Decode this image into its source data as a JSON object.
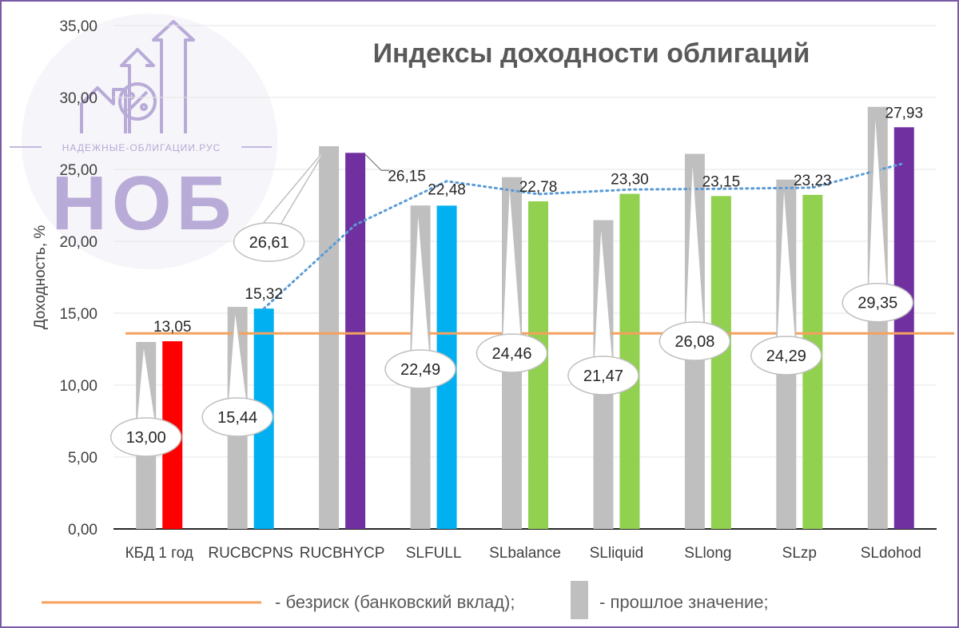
{
  "chart_data": {
    "type": "bar",
    "title": "Индексы доходности облигаций",
    "ylabel": "Доходность, %",
    "xlabel": "",
    "ylim": [
      0,
      35
    ],
    "yticks": [
      "0,00",
      "5,00",
      "10,00",
      "15,00",
      "20,00",
      "25,00",
      "30,00",
      "35,00"
    ],
    "grid": true,
    "categories": [
      "КБД 1 год",
      "RUCBCPNS",
      "RUCBHYCP",
      "SLFULL",
      "SLbalance",
      "SLliquid",
      "SLlong",
      "SLzp",
      "SLdohod"
    ],
    "series": [
      {
        "name": "прошлое значение",
        "color": "#bfbfbf",
        "values": [
          13.0,
          15.44,
          26.61,
          22.49,
          24.46,
          21.47,
          26.08,
          24.29,
          29.35
        ],
        "labels": [
          "13,00",
          "15,44",
          "26,61",
          "22,49",
          "24,46",
          "21,47",
          "26,08",
          "24,29",
          "29,35"
        ]
      },
      {
        "name": "",
        "values": [
          13.05,
          15.32,
          26.15,
          22.48,
          22.78,
          23.3,
          23.15,
          23.23,
          27.93
        ],
        "labels": [
          "13,05",
          "15,32",
          "26,15",
          "22,48",
          "22,78",
          "23,30",
          "23,15",
          "23,23",
          "27,93"
        ],
        "colors": [
          "#ff0000",
          "#00b0f0",
          "#7030a0",
          "#00b0f0",
          "#92d050",
          "#92d050",
          "#92d050",
          "#92d050",
          "#7030a0"
        ]
      }
    ],
    "riskfree": {
      "value": 13.6,
      "color": "#f4a15d"
    },
    "trendline": {
      "style": "dotted",
      "color": "#5b9bd5"
    },
    "legend": {
      "position": "bottom",
      "items": [
        {
          "label": "- безриск (банковский вклад);",
          "symbol": "line",
          "color": "#f4a15d"
        },
        {
          "label": "- прошлое значение;",
          "symbol": "bar",
          "color": "#bfbfbf"
        }
      ]
    }
  },
  "watermark": {
    "site": "НАДЕЖНЫЕ-ОБЛИГАЦИИ.РУС",
    "brand": "НОБ",
    "icon": "percent-house-icon"
  }
}
